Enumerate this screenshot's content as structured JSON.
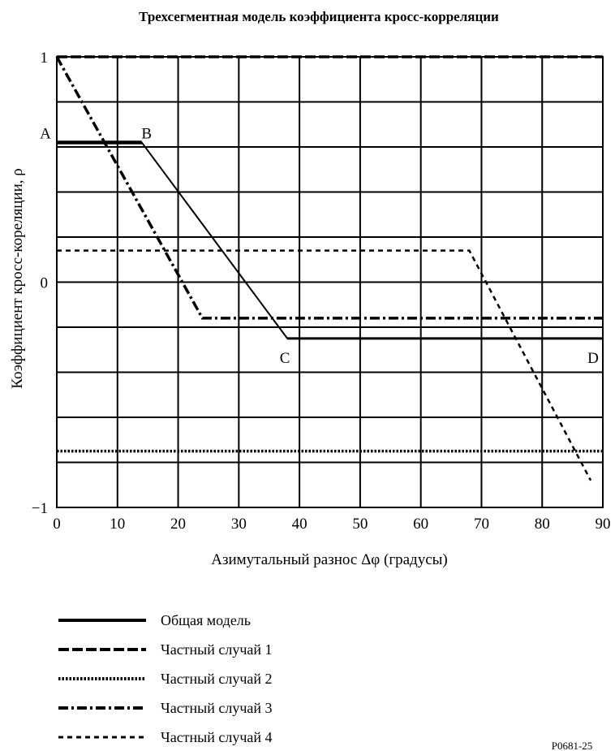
{
  "chart_data": {
    "type": "line",
    "title": "Трехсегментная модель коэффициента кросс-корреляции",
    "xlabel": "Азимутальный разнос  Δφ (градусы)",
    "ylabel": "Коэффициент кросс-кореляции, ρ",
    "xlim": [
      0,
      90
    ],
    "ylim": [
      -1,
      1
    ],
    "x_ticks": [
      0,
      10,
      20,
      30,
      40,
      50,
      60,
      70,
      80,
      90
    ],
    "y_tick_labels": [
      "1",
      "0",
      "−1"
    ],
    "grid": true,
    "legend_position": "bottom-left",
    "point_labels": [
      {
        "text": "A",
        "x": 0,
        "y": 0.62
      },
      {
        "text": "B",
        "x": 14,
        "y": 0.62
      },
      {
        "text": "C",
        "x": 38,
        "y": -0.25
      },
      {
        "text": "D",
        "x": 90,
        "y": -0.25
      }
    ],
    "series": [
      {
        "name": "Общая модель",
        "style": "solid",
        "x": [
          0,
          14,
          38,
          90
        ],
        "y": [
          0.62,
          0.62,
          -0.25,
          -0.25
        ]
      },
      {
        "name": "Частный случай  1",
        "style": "dashed",
        "x": [
          0,
          90
        ],
        "y": [
          1,
          1
        ]
      },
      {
        "name": "Частный случай  2",
        "style": "dotted",
        "x": [
          0,
          90
        ],
        "y": [
          -0.75,
          -0.75
        ]
      },
      {
        "name": "Частный случай  3",
        "style": "dash-dot",
        "x": [
          0,
          24,
          90
        ],
        "y": [
          1,
          -0.16,
          -0.16
        ]
      },
      {
        "name": "Частный случай  4",
        "style": "short-dash",
        "x": [
          0,
          68,
          88
        ],
        "y": [
          0.14,
          0.14,
          -0.88
        ]
      }
    ]
  },
  "figure_id": "P0681-25"
}
